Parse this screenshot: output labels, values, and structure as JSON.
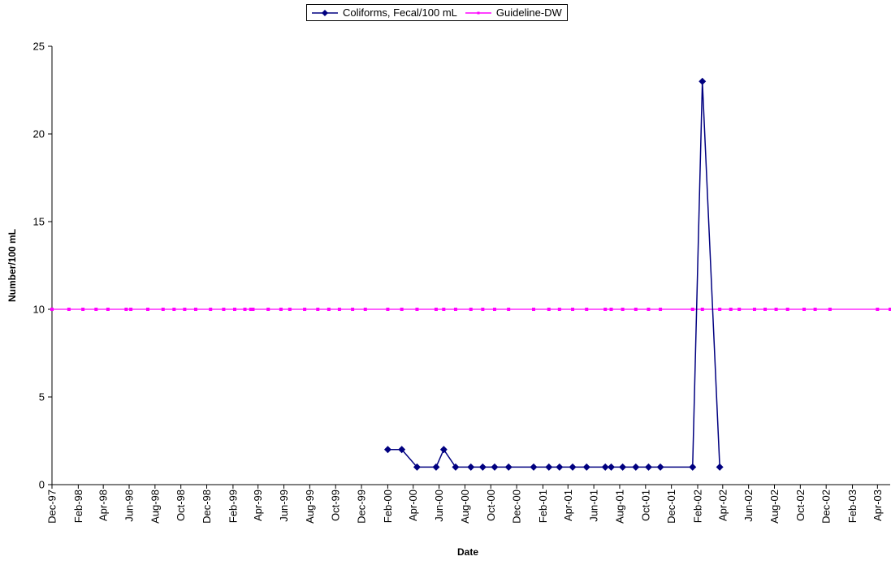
{
  "chart_data": {
    "type": "line",
    "title": "",
    "xlabel": "Date",
    "ylabel": "Number/100 mL",
    "xlim": [
      "1997-12-01",
      "2003-05-01"
    ],
    "ylim": [
      0,
      25
    ],
    "yticks": [
      0,
      5,
      10,
      15,
      20,
      25
    ],
    "grid": false,
    "legend_position": "top-center",
    "x_ticks": [
      {
        "label": "Dec-97",
        "date": "1997-12-01"
      },
      {
        "label": "Feb-98",
        "date": "1998-02-01"
      },
      {
        "label": "Apr-98",
        "date": "1998-04-01"
      },
      {
        "label": "Jun-98",
        "date": "1998-06-01"
      },
      {
        "label": "Aug-98",
        "date": "1998-08-01"
      },
      {
        "label": "Oct-98",
        "date": "1998-10-01"
      },
      {
        "label": "Dec-98",
        "date": "1998-12-01"
      },
      {
        "label": "Feb-99",
        "date": "1999-02-01"
      },
      {
        "label": "Apr-99",
        "date": "1999-04-01"
      },
      {
        "label": "Jun-99",
        "date": "1999-06-01"
      },
      {
        "label": "Aug-99",
        "date": "1999-08-01"
      },
      {
        "label": "Oct-99",
        "date": "1999-10-01"
      },
      {
        "label": "Dec-99",
        "date": "1999-12-01"
      },
      {
        "label": "Feb-00",
        "date": "2000-02-01"
      },
      {
        "label": "Apr-00",
        "date": "2000-04-01"
      },
      {
        "label": "Jun-00",
        "date": "2000-06-01"
      },
      {
        "label": "Aug-00",
        "date": "2000-08-01"
      },
      {
        "label": "Oct-00",
        "date": "2000-10-01"
      },
      {
        "label": "Dec-00",
        "date": "2000-12-01"
      },
      {
        "label": "Feb-01",
        "date": "2001-02-01"
      },
      {
        "label": "Apr-01",
        "date": "2001-04-01"
      },
      {
        "label": "Jun-01",
        "date": "2001-06-01"
      },
      {
        "label": "Aug-01",
        "date": "2001-08-01"
      },
      {
        "label": "Oct-01",
        "date": "2001-10-01"
      },
      {
        "label": "Dec-01",
        "date": "2001-12-01"
      },
      {
        "label": "Feb-02",
        "date": "2002-02-01"
      },
      {
        "label": "Apr-02",
        "date": "2002-04-01"
      },
      {
        "label": "Jun-02",
        "date": "2002-06-01"
      },
      {
        "label": "Aug-02",
        "date": "2002-08-01"
      },
      {
        "label": "Oct-02",
        "date": "2002-10-01"
      },
      {
        "label": "Dec-02",
        "date": "2002-12-01"
      },
      {
        "label": "Feb-03",
        "date": "2003-02-01"
      },
      {
        "label": "Apr-03",
        "date": "2003-04-01"
      }
    ],
    "series": [
      {
        "name": "Coliforms, Fecal/100 mL",
        "color": "#000080",
        "marker": "diamond",
        "points": [
          {
            "x": "2000-02-01",
            "y": 2
          },
          {
            "x": "2000-03-05",
            "y": 2
          },
          {
            "x": "2000-04-10",
            "y": 1
          },
          {
            "x": "2000-05-25",
            "y": 1
          },
          {
            "x": "2000-06-12",
            "y": 2
          },
          {
            "x": "2000-07-10",
            "y": 1
          },
          {
            "x": "2000-08-15",
            "y": 1
          },
          {
            "x": "2000-09-12",
            "y": 1
          },
          {
            "x": "2000-10-10",
            "y": 1
          },
          {
            "x": "2000-11-12",
            "y": 1
          },
          {
            "x": "2001-01-10",
            "y": 1
          },
          {
            "x": "2001-02-15",
            "y": 1
          },
          {
            "x": "2001-03-12",
            "y": 1
          },
          {
            "x": "2001-04-12",
            "y": 1
          },
          {
            "x": "2001-05-15",
            "y": 1
          },
          {
            "x": "2001-06-28",
            "y": 1
          },
          {
            "x": "2001-07-12",
            "y": 1
          },
          {
            "x": "2001-08-08",
            "y": 1
          },
          {
            "x": "2001-09-08",
            "y": 1
          },
          {
            "x": "2001-10-08",
            "y": 1
          },
          {
            "x": "2001-11-05",
            "y": 1
          },
          {
            "x": "2002-01-20",
            "y": 1
          },
          {
            "x": "2002-02-12",
            "y": 23
          },
          {
            "x": "2002-03-25",
            "y": 1
          }
        ]
      },
      {
        "name": "Guideline-DW",
        "color": "#FF00FF",
        "marker": "small-square",
        "constant_y": 10,
        "x": [
          "1997-12-01",
          "1998-01-10",
          "1998-02-12",
          "1998-03-15",
          "1998-04-12",
          "1998-05-25",
          "1998-06-05",
          "1998-07-15",
          "1998-08-20",
          "1998-09-15",
          "1998-10-10",
          "1998-11-05",
          "1998-12-10",
          "1999-01-10",
          "1999-02-05",
          "1999-03-01",
          "1999-03-15",
          "1999-03-20",
          "1999-04-25",
          "1999-05-25",
          "1999-06-15",
          "1999-07-20",
          "1999-08-20",
          "1999-09-15",
          "1999-10-10",
          "1999-11-10",
          "1999-12-10",
          "2000-02-01",
          "2000-03-05",
          "2000-04-10",
          "2000-05-25",
          "2000-06-12",
          "2000-07-10",
          "2000-08-15",
          "2000-09-12",
          "2000-10-10",
          "2000-11-12",
          "2001-01-10",
          "2001-02-15",
          "2001-03-12",
          "2001-04-12",
          "2001-05-15",
          "2001-06-28",
          "2001-07-12",
          "2001-08-08",
          "2001-09-08",
          "2001-10-08",
          "2001-11-05",
          "2002-01-20",
          "2002-02-12",
          "2002-03-25",
          "2002-04-20",
          "2002-05-10",
          "2002-06-15",
          "2002-07-10",
          "2002-08-05",
          "2002-09-01",
          "2002-10-10",
          "2002-11-05",
          "2002-12-10",
          "2003-04-01",
          "2003-05-01"
        ]
      }
    ]
  }
}
